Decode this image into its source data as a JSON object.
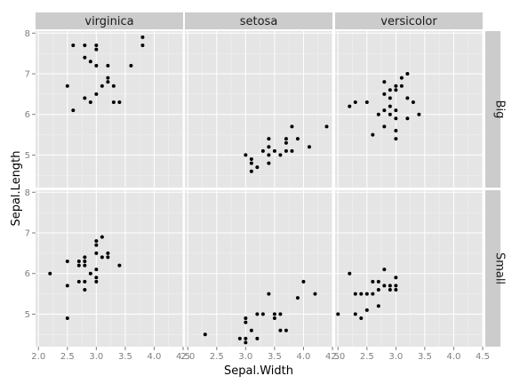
{
  "chart_data": {
    "type": "scatter",
    "xlabel": "Sepal.Width",
    "ylabel": "Sepal.Length",
    "xlim": [
      1.95,
      4.5
    ],
    "ylim": [
      4.2,
      8.05
    ],
    "x_ticks": [
      "2.0",
      "2.5",
      "3.0",
      "3.5",
      "4.0",
      "4.5"
    ],
    "x_tick_values": [
      2.0,
      2.5,
      3.0,
      3.5,
      4.0,
      4.5
    ],
    "y_ticks": [
      "5",
      "6",
      "7",
      "8"
    ],
    "y_tick_values": [
      5,
      6,
      7,
      8
    ],
    "columns": [
      "virginica",
      "setosa",
      "versicolor"
    ],
    "rows": [
      "Big",
      "Small"
    ],
    "panels": [
      {
        "species": "virginica",
        "size": "Big",
        "points": [
          [
            2.5,
            6.7
          ],
          [
            2.6,
            7.7
          ],
          [
            2.6,
            6.1
          ],
          [
            2.8,
            7.7
          ],
          [
            2.8,
            7.4
          ],
          [
            2.8,
            6.4
          ],
          [
            2.9,
            7.3
          ],
          [
            2.9,
            6.3
          ],
          [
            3.0,
            7.7
          ],
          [
            3.0,
            7.6
          ],
          [
            3.0,
            7.2
          ],
          [
            3.0,
            6.5
          ],
          [
            3.1,
            6.7
          ],
          [
            3.2,
            7.2
          ],
          [
            3.2,
            6.9
          ],
          [
            3.2,
            6.8
          ],
          [
            3.3,
            6.7
          ],
          [
            3.3,
            6.3
          ],
          [
            3.4,
            6.3
          ],
          [
            3.6,
            7.2
          ],
          [
            3.8,
            7.9
          ],
          [
            3.8,
            7.7
          ]
        ]
      },
      {
        "species": "setosa",
        "size": "Big",
        "points": [
          [
            3.0,
            5.0
          ],
          [
            3.1,
            4.9
          ],
          [
            3.1,
            4.8
          ],
          [
            3.2,
            4.7
          ],
          [
            3.1,
            4.6
          ],
          [
            3.3,
            5.1
          ],
          [
            3.4,
            5.4
          ],
          [
            3.4,
            5.2
          ],
          [
            3.4,
            5.0
          ],
          [
            3.4,
            4.8
          ],
          [
            3.5,
            5.1
          ],
          [
            3.6,
            5.0
          ],
          [
            3.7,
            5.4
          ],
          [
            3.7,
            5.3
          ],
          [
            3.7,
            5.1
          ],
          [
            3.8,
            5.7
          ],
          [
            3.8,
            5.1
          ],
          [
            3.9,
            5.4
          ],
          [
            4.1,
            5.2
          ],
          [
            4.4,
            5.7
          ]
        ]
      },
      {
        "species": "versicolor",
        "size": "Big",
        "points": [
          [
            2.2,
            6.2
          ],
          [
            2.3,
            6.3
          ],
          [
            2.5,
            6.3
          ],
          [
            2.6,
            5.5
          ],
          [
            2.7,
            6.0
          ],
          [
            2.8,
            6.8
          ],
          [
            2.8,
            6.5
          ],
          [
            2.8,
            6.1
          ],
          [
            2.8,
            5.7
          ],
          [
            2.9,
            6.6
          ],
          [
            2.9,
            6.4
          ],
          [
            2.9,
            6.2
          ],
          [
            2.9,
            6.0
          ],
          [
            3.0,
            6.7
          ],
          [
            3.0,
            6.6
          ],
          [
            3.0,
            6.1
          ],
          [
            3.0,
            5.9
          ],
          [
            3.0,
            5.6
          ],
          [
            3.0,
            5.4
          ],
          [
            3.1,
            6.9
          ],
          [
            3.1,
            6.7
          ],
          [
            3.2,
            7.0
          ],
          [
            3.2,
            6.4
          ],
          [
            3.2,
            5.9
          ],
          [
            3.3,
            6.3
          ],
          [
            3.4,
            6.0
          ]
        ]
      },
      {
        "species": "virginica",
        "size": "Small",
        "points": [
          [
            2.2,
            6.0
          ],
          [
            2.5,
            6.3
          ],
          [
            2.5,
            5.7
          ],
          [
            2.5,
            4.9
          ],
          [
            2.7,
            6.3
          ],
          [
            2.7,
            6.2
          ],
          [
            2.7,
            5.8
          ],
          [
            2.8,
            6.4
          ],
          [
            2.8,
            6.3
          ],
          [
            2.8,
            6.2
          ],
          [
            2.8,
            5.8
          ],
          [
            2.8,
            5.6
          ],
          [
            2.9,
            6.0
          ],
          [
            3.0,
            6.8
          ],
          [
            3.0,
            6.7
          ],
          [
            3.0,
            6.5
          ],
          [
            3.0,
            6.1
          ],
          [
            3.0,
            5.9
          ],
          [
            3.0,
            5.8
          ],
          [
            3.1,
            6.9
          ],
          [
            3.1,
            6.4
          ],
          [
            3.2,
            6.5
          ],
          [
            3.2,
            6.4
          ],
          [
            3.4,
            6.2
          ]
        ]
      },
      {
        "species": "setosa",
        "size": "Small",
        "points": [
          [
            2.3,
            4.5
          ],
          [
            2.9,
            4.4
          ],
          [
            3.0,
            4.9
          ],
          [
            3.0,
            4.8
          ],
          [
            3.0,
            4.4
          ],
          [
            3.0,
            4.3
          ],
          [
            3.1,
            4.6
          ],
          [
            3.2,
            5.0
          ],
          [
            3.2,
            4.4
          ],
          [
            3.3,
            5.0
          ],
          [
            3.4,
            5.5
          ],
          [
            3.5,
            5.0
          ],
          [
            3.5,
            4.9
          ],
          [
            3.6,
            5.0
          ],
          [
            3.6,
            4.6
          ],
          [
            3.7,
            4.6
          ],
          [
            3.9,
            5.4
          ],
          [
            4.0,
            5.8
          ],
          [
            4.2,
            5.5
          ]
        ]
      },
      {
        "species": "versicolor",
        "size": "Small",
        "points": [
          [
            2.0,
            5.0
          ],
          [
            2.2,
            6.0
          ],
          [
            2.3,
            5.5
          ],
          [
            2.3,
            5.0
          ],
          [
            2.4,
            5.5
          ],
          [
            2.4,
            4.9
          ],
          [
            2.5,
            5.5
          ],
          [
            2.5,
            5.1
          ],
          [
            2.6,
            5.8
          ],
          [
            2.6,
            5.5
          ],
          [
            2.7,
            5.8
          ],
          [
            2.7,
            5.6
          ],
          [
            2.7,
            5.2
          ],
          [
            2.8,
            6.1
          ],
          [
            2.8,
            5.7
          ],
          [
            2.9,
            5.7
          ],
          [
            2.9,
            5.6
          ],
          [
            3.0,
            5.9
          ],
          [
            3.0,
            5.7
          ],
          [
            3.0,
            5.6
          ]
        ]
      }
    ]
  }
}
